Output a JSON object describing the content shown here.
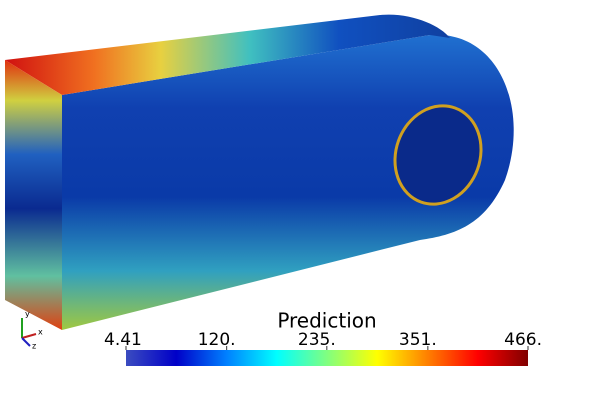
{
  "colorbar": {
    "title": "Prediction",
    "range": [
      4.41,
      466
    ],
    "ticks": [
      4.41,
      {
        "value": 120,
        "label": "120."
      },
      {
        "value": 235,
        "label": "235."
      },
      {
        "value": 351,
        "label": "351."
      },
      {
        "value": 466,
        "label": "466."
      }
    ],
    "colors": [
      "#3b4cc0",
      "#0000c8",
      "#0080ff",
      "#00ffff",
      "#80ff80",
      "#ffff00",
      "#ff8000",
      "#ff0000",
      "#800000"
    ]
  },
  "axes_triad": [
    "x",
    "y",
    "z"
  ]
}
